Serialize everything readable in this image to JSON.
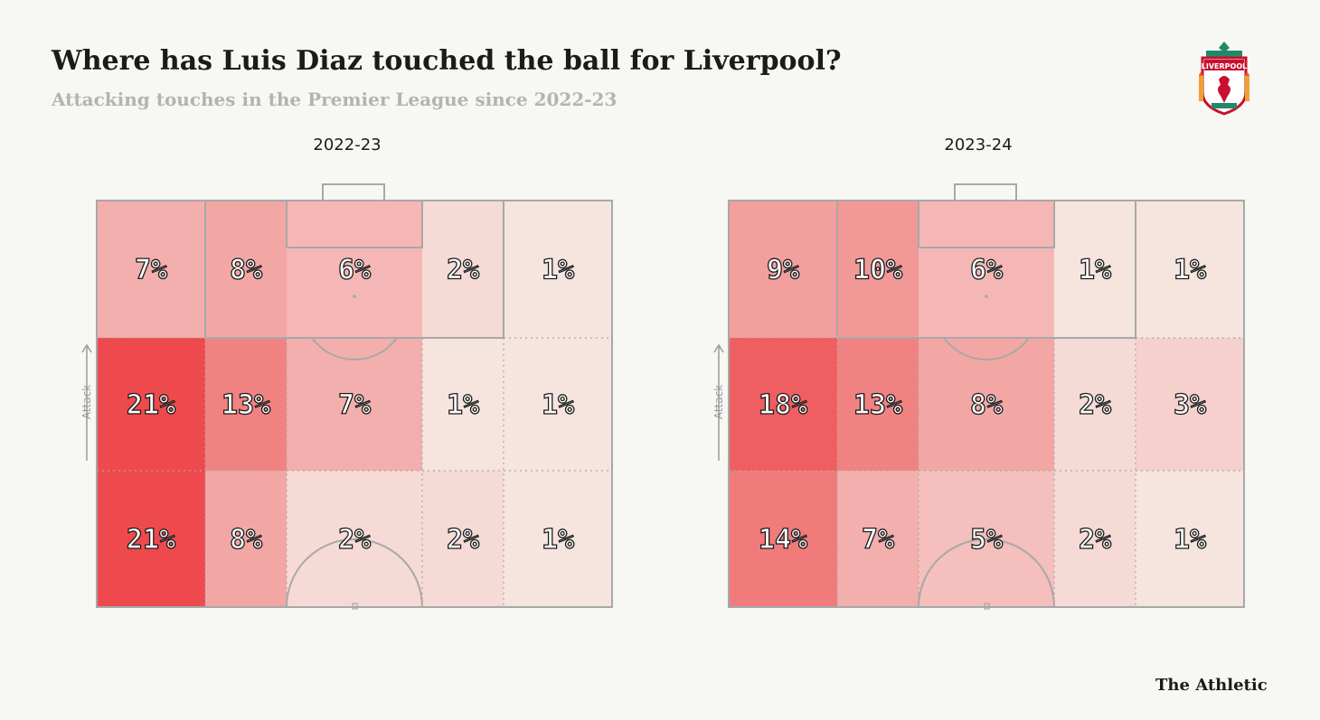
{
  "header": {
    "title": "Where has Luis Diaz touched the ball for Liverpool?",
    "subtitle": "Attacking touches in the Premier League since 2022-23"
  },
  "logo": {
    "icon": "liverpool-crest-icon",
    "text": "LIVERPOOL"
  },
  "attack_label": "Attack",
  "brand": "The Athletic",
  "colors": {
    "background": "#f7f7f3",
    "pitch_lines": "#a8a8a8",
    "heat_low": "#f7f0eb",
    "heat_high": "#ee4a4d",
    "text": "#1b1b1b"
  },
  "chart_data": [
    {
      "type": "heatmap",
      "title": "2022-23",
      "rows": 3,
      "cols": 5,
      "values": [
        [
          7,
          8,
          6,
          2,
          1
        ],
        [
          21,
          13,
          7,
          1,
          1
        ],
        [
          21,
          8,
          2,
          2,
          1
        ]
      ],
      "labels": [
        [
          "7%",
          "8%",
          "6%",
          "2%",
          "1%"
        ],
        [
          "21%",
          "13%",
          "7%",
          "1%",
          "1%"
        ],
        [
          "21%",
          "8%",
          "2%",
          "2%",
          "1%"
        ]
      ]
    },
    {
      "type": "heatmap",
      "title": "2023-24",
      "rows": 3,
      "cols": 5,
      "values": [
        [
          9,
          10,
          6,
          1,
          1
        ],
        [
          18,
          13,
          8,
          2,
          3
        ],
        [
          14,
          7,
          5,
          2,
          1
        ]
      ],
      "labels": [
        [
          "9%",
          "10%",
          "6%",
          "1%",
          "1%"
        ],
        [
          "18%",
          "13%",
          "8%",
          "2%",
          "3%"
        ],
        [
          "14%",
          "7%",
          "5%",
          "2%",
          "1%"
        ]
      ]
    }
  ]
}
